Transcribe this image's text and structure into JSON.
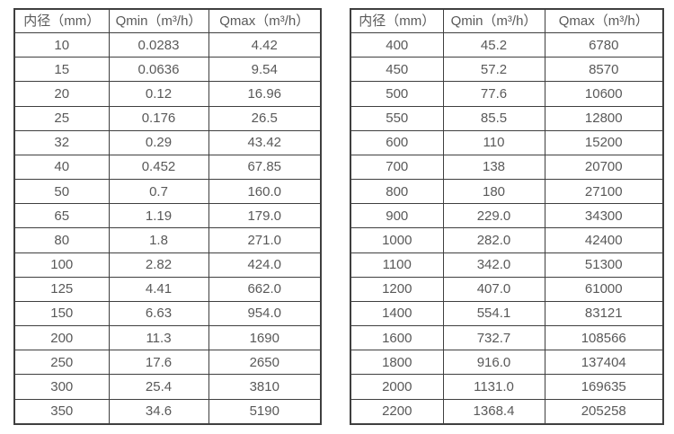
{
  "tables": [
    {
      "name": "small-diameter-flow-table",
      "headers": [
        "内径（mm）",
        "Qmin（m³/h）",
        "Qmax（m³/h）"
      ],
      "rows": [
        [
          "10",
          "0.0283",
          "4.42"
        ],
        [
          "15",
          "0.0636",
          "9.54"
        ],
        [
          "20",
          "0.12",
          "16.96"
        ],
        [
          "25",
          "0.176",
          "26.5"
        ],
        [
          "32",
          "0.29",
          "43.42"
        ],
        [
          "40",
          "0.452",
          "67.85"
        ],
        [
          "50",
          "0.7",
          "160.0"
        ],
        [
          "65",
          "1.19",
          "179.0"
        ],
        [
          "80",
          "1.8",
          "271.0"
        ],
        [
          "100",
          "2.82",
          "424.0"
        ],
        [
          "125",
          "4.41",
          "662.0"
        ],
        [
          "150",
          "6.63",
          "954.0"
        ],
        [
          "200",
          "11.3",
          "1690"
        ],
        [
          "250",
          "17.6",
          "2650"
        ],
        [
          "300",
          "25.4",
          "3810"
        ],
        [
          "350",
          "34.6",
          "5190"
        ]
      ]
    },
    {
      "name": "large-diameter-flow-table",
      "headers": [
        "内径（mm）",
        "Qmin（m³/h）",
        "Qmax（m³/h）"
      ],
      "rows": [
        [
          "400",
          "45.2",
          "6780"
        ],
        [
          "450",
          "57.2",
          "8570"
        ],
        [
          "500",
          "77.6",
          "10600"
        ],
        [
          "550",
          "85.5",
          "12800"
        ],
        [
          "600",
          "110",
          "15200"
        ],
        [
          "700",
          "138",
          "20700"
        ],
        [
          "800",
          "180",
          "27100"
        ],
        [
          "900",
          "229.0",
          "34300"
        ],
        [
          "1000",
          "282.0",
          "42400"
        ],
        [
          "1100",
          "342.0",
          "51300"
        ],
        [
          "1200",
          "407.0",
          "61000"
        ],
        [
          "1400",
          "554.1",
          "83121"
        ],
        [
          "1600",
          "732.7",
          "108566"
        ],
        [
          "1800",
          "916.0",
          "137404"
        ],
        [
          "2000",
          "1131.0",
          "169635"
        ],
        [
          "2200",
          "1368.4",
          "205258"
        ]
      ]
    }
  ],
  "colors": {
    "border": "#3f3f3f",
    "text": "#595959",
    "background": "#ffffff"
  }
}
